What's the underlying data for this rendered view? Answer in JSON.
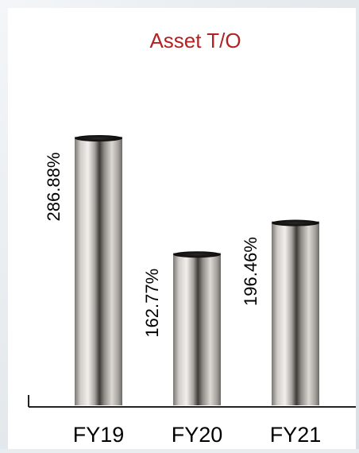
{
  "chart_data": {
    "type": "bar",
    "title": "Asset T/O",
    "categories": [
      "FY19",
      "FY20",
      "FY21"
    ],
    "values": [
      286.88,
      162.77,
      196.46
    ],
    "value_labels": [
      "286.88%",
      "162.77%",
      "196.46%"
    ],
    "unit": "%",
    "xlabel": "",
    "ylabel": "",
    "grid": false,
    "legend": "none"
  },
  "colors": {
    "title": "#b22222",
    "text": "#000000",
    "axis": "#222222",
    "panel": "#ffffff"
  }
}
